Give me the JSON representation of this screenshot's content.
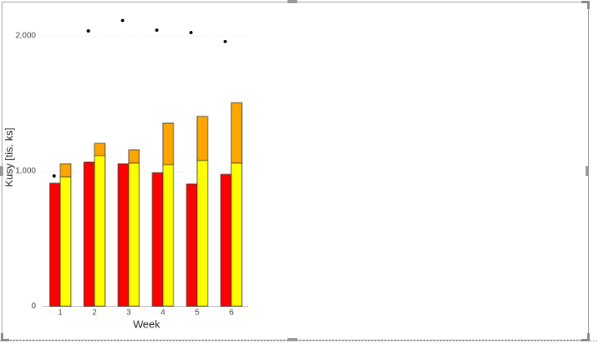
{
  "chart_data": {
    "type": "bar",
    "x_label": "Week",
    "y_label": "Kusy [tis. ks]",
    "categories": [
      "1",
      "2",
      "3",
      "4",
      "5",
      "6"
    ],
    "series": [
      {
        "type": "bar",
        "color": "#ff0000",
        "values": [
          910,
          1066,
          1054,
          988,
          904,
          976
        ]
      },
      {
        "type": "bar",
        "color": "#ffff00",
        "values": [
          958,
          1114,
          1060,
          1048,
          1078,
          1060
        ]
      },
      {
        "type": "bar",
        "color": "#ffa500",
        "stacked": true,
        "values": [
          96,
          91,
          97,
          307,
          326,
          446
        ]
      },
      {
        "type": "scatter",
        "color": "#000000",
        "values": [
          964,
          2036,
          2114,
          2042,
          2024,
          1958
        ]
      }
    ],
    "ylim": [
      0,
      2200
    ],
    "yticks": [
      0,
      {
        "value": 1000,
        "label": "1,000"
      },
      {
        "value": 2000,
        "label": "2,000"
      }
    ],
    "grid": true
  }
}
